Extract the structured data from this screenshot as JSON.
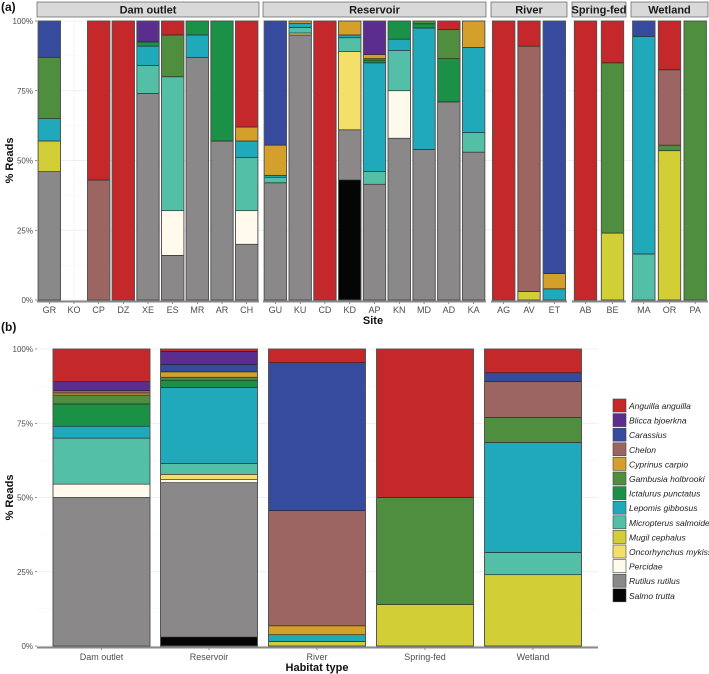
{
  "species": [
    {
      "key": "ang",
      "name": "Anguilla anguilla",
      "color": "#c4282b"
    },
    {
      "key": "bli",
      "name": "Blicca bjoerkna",
      "color": "#5b2d8e"
    },
    {
      "key": "car",
      "name": "Carassius",
      "color": "#364a9e"
    },
    {
      "key": "che",
      "name": "Chelon",
      "color": "#9c6562"
    },
    {
      "key": "cyp",
      "name": "Cyprinus carpio",
      "color": "#d4a02b"
    },
    {
      "key": "gam",
      "name": "Gambusia holbrooki",
      "color": "#4e8e3e"
    },
    {
      "key": "ict",
      "name": "Ictalurus punctatus",
      "color": "#1a9146"
    },
    {
      "key": "lep",
      "name": "Lepomis gibbosus",
      "color": "#1fa9ba"
    },
    {
      "key": "mic",
      "name": "Micropterus salmoides",
      "color": "#52bfa6"
    },
    {
      "key": "mug",
      "name": "Mugil cephalus",
      "color": "#d2ce36"
    },
    {
      "key": "onc",
      "name": "Oncorhynchus mykiss",
      "color": "#f5df6b"
    },
    {
      "key": "per",
      "name": "Percidae",
      "color": "#fffaeb"
    },
    {
      "key": "rut",
      "name": "Rutilus rutilus",
      "color": "#8a8889"
    },
    {
      "key": "sal",
      "name": "Salmo trutta",
      "color": "#050505"
    }
  ],
  "stack_order_bottom_up": [
    "sal",
    "rut",
    "per",
    "onc",
    "mug",
    "mic",
    "lep",
    "ict",
    "gam",
    "cyp",
    "che",
    "car",
    "bli",
    "ang"
  ],
  "chart_data": [
    {
      "panel_label": "(a)",
      "type": "bar",
      "stacked": true,
      "xlabel": "Site",
      "ylabel": "% Reads",
      "ylim": [
        0,
        100
      ],
      "yticks": [
        "0%",
        "25%",
        "50%",
        "75%",
        "100%"
      ],
      "facets": [
        {
          "name": "Dam outlet",
          "sites": [
            {
              "site": "GR",
              "values": {
                "rut": 46,
                "mug": 11,
                "lep": 8,
                "gam": 22,
                "car": 13
              }
            },
            {
              "site": "KO",
              "values": {}
            },
            {
              "site": "CP",
              "values": {
                "che": 43,
                "ang": 57
              }
            },
            {
              "site": "DZ",
              "values": {
                "ang": 100
              }
            },
            {
              "site": "XE",
              "values": {
                "rut": 74,
                "mic": 10,
                "lep": 7,
                "ict": 1.5,
                "bli": 7.5
              }
            },
            {
              "site": "ES",
              "values": {
                "rut": 16,
                "per": 16,
                "mic": 48,
                "gam": 15,
                "ang": 5
              }
            },
            {
              "site": "MR",
              "values": {
                "rut": 87,
                "lep": 8,
                "ict": 5
              }
            },
            {
              "site": "AR",
              "values": {
                "rut": 57,
                "ict": 43
              }
            },
            {
              "site": "CH",
              "values": {
                "rut": 20,
                "per": 12,
                "mic": 19,
                "lep": 6,
                "cyp": 5,
                "ang": 38
              }
            }
          ]
        },
        {
          "name": "Reservoir",
          "sites": [
            {
              "site": "GU",
              "values": {
                "rut": 42,
                "mic": 2,
                "lep": 0.7,
                "cyp": 10.8,
                "car": 44.5
              }
            },
            {
              "site": "KU",
              "values": {
                "rut": 95,
                "mic": 2,
                "lep": 1.5,
                "cyp": 0.8,
                "onc": 0.7
              }
            },
            {
              "site": "CD",
              "values": {
                "ang": 100
              }
            },
            {
              "site": "KD",
              "values": {
                "sal": 43,
                "rut": 18,
                "onc": 28,
                "mic": 5,
                "lep": 1,
                "cyp": 5
              }
            },
            {
              "site": "AP",
              "values": {
                "rut": 41.5,
                "mic": 4.5,
                "lep": 39,
                "ict": 1,
                "gam": 0.5,
                "cyp": 1.5,
                "bli": 12
              }
            },
            {
              "site": "KN",
              "values": {
                "rut": 58,
                "per": 17,
                "mic": 14.5,
                "lep": 4,
                "ict": 6.5
              }
            },
            {
              "site": "MD",
              "values": {
                "rut": 54,
                "lep": 43.5,
                "ict": 1.5,
                "gam": 1
              }
            },
            {
              "site": "AD",
              "values": {
                "rut": 71,
                "ict": 15.5,
                "gam": 10.5,
                "ang": 3
              }
            },
            {
              "site": "KA",
              "values": {
                "rut": 53,
                "mic": 7,
                "lep": 30.5,
                "cyp": 9.5
              }
            }
          ]
        },
        {
          "name": "River",
          "sites": [
            {
              "site": "AG",
              "values": {
                "ang": 100
              }
            },
            {
              "site": "AV",
              "values": {
                "mug": 3,
                "che": 88,
                "ang": 9
              }
            },
            {
              "site": "ET",
              "values": {
                "lep": 4,
                "cyp": 5.5,
                "car": 90.5
              }
            }
          ]
        },
        {
          "name": "Spring-fed",
          "sites": [
            {
              "site": "AB",
              "values": {
                "ang": 100
              }
            },
            {
              "site": "BE",
              "values": {
                "mug": 24,
                "gam": 61,
                "ang": 15
              }
            }
          ]
        },
        {
          "name": "Wetland",
          "sites": [
            {
              "site": "MA",
              "values": {
                "mic": 16.5,
                "lep": 78,
                "car": 5.5
              }
            },
            {
              "site": "OR",
              "values": {
                "mug": 53.5,
                "gam": 2,
                "che": 27,
                "ang": 17.5
              }
            },
            {
              "site": "PA",
              "values": {
                "gam": 100
              }
            }
          ]
        }
      ]
    },
    {
      "panel_label": "(b)",
      "type": "bar",
      "stacked": true,
      "xlabel": "Habitat type",
      "ylabel": "% Reads",
      "ylim": [
        0,
        100
      ],
      "yticks": [
        "0%",
        "25%",
        "50%",
        "75%",
        "100%"
      ],
      "legend_placement": "right",
      "categories": [
        {
          "name": "Dam outlet",
          "values": {
            "rut": 50,
            "per": 4.5,
            "mic": 15.5,
            "lep": 4,
            "ict": 7.5,
            "gam": 3,
            "cyp": 0.7,
            "che": 0.8,
            "bli": 3,
            "ang": 11
          }
        },
        {
          "name": "Reservoir",
          "values": {
            "sal": 3,
            "rut": 52,
            "per": 1,
            "onc": 1.8,
            "mic": 3.7,
            "lep": 25.5,
            "ict": 2.5,
            "gam": 1,
            "cyp": 1.8,
            "car": 2.5,
            "bli": 4.4,
            "ang": 0.8
          }
        },
        {
          "name": "River",
          "values": {
            "mug": 1.5,
            "lep": 2.3,
            "cyp": 3,
            "che": 38.8,
            "car": 49.8,
            "ang": 4.6
          }
        },
        {
          "name": "Spring-fed",
          "values": {
            "mug": 14,
            "gam": 36,
            "ang": 50
          }
        },
        {
          "name": "Wetland",
          "values": {
            "mug": 24,
            "mic": 7.5,
            "lep": 37,
            "gam": 8.5,
            "che": 12,
            "car": 3,
            "ang": 8
          }
        }
      ]
    }
  ]
}
